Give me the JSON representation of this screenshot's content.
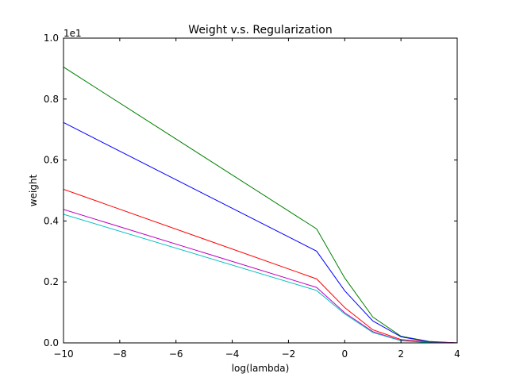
{
  "chart_data": {
    "type": "line",
    "title": "Weight v.s. Regularization",
    "xlabel": "log(lambda)",
    "ylabel": "weight",
    "y_offset_label": "1e1",
    "xlim": [
      -10,
      4
    ],
    "ylim": [
      0,
      1.0
    ],
    "x_ticks": [
      -10,
      -8,
      -6,
      -4,
      -2,
      0,
      2,
      4
    ],
    "x_tick_labels": [
      "−10",
      "−8",
      "−6",
      "−4",
      "−2",
      "0",
      "2",
      "4"
    ],
    "y_ticks": [
      0,
      0.2,
      0.4,
      0.6,
      0.8,
      1.0
    ],
    "y_tick_labels": [
      "0.0",
      "0.2",
      "0.4",
      "0.6",
      "0.8",
      "1.0"
    ],
    "grid": false,
    "x": [
      -10,
      -1,
      0,
      1,
      2,
      3,
      4
    ],
    "series": [
      {
        "color": "#008000",
        "values": [
          0.905,
          0.374,
          0.213,
          0.085,
          0.022,
          0.005,
          0.0
        ]
      },
      {
        "color": "#0000ff",
        "values": [
          0.723,
          0.301,
          0.171,
          0.072,
          0.02,
          0.004,
          0.0
        ]
      },
      {
        "color": "#ff0000",
        "values": [
          0.504,
          0.21,
          0.116,
          0.043,
          0.011,
          0.003,
          0.0
        ]
      },
      {
        "color": "#bf00bf",
        "values": [
          0.438,
          0.182,
          0.099,
          0.037,
          0.008,
          0.002,
          0.0
        ]
      },
      {
        "color": "#00bfbf",
        "values": [
          0.422,
          0.172,
          0.095,
          0.034,
          0.007,
          0.001,
          0.0
        ]
      }
    ]
  }
}
